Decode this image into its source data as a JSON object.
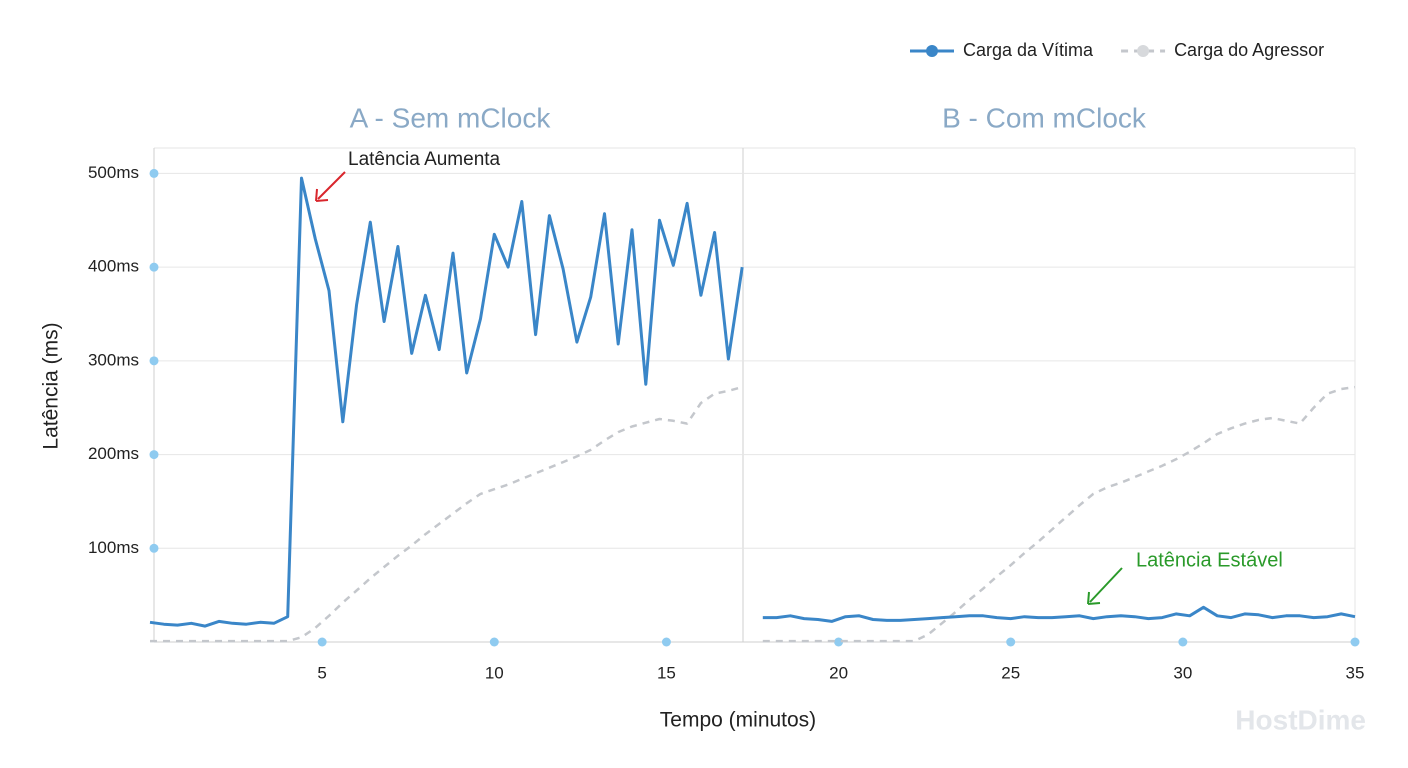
{
  "chart_data": {
    "type": "line",
    "panel_titles": [
      "A - Sem mClock",
      "B - Com mClock"
    ],
    "x_label": "Tempo (minutos)",
    "y_label": "Latência (ms)",
    "watermark": "HostDime",
    "legend_position": "top-right",
    "xlim": [
      0,
      35
    ],
    "xticks": [
      5,
      10,
      15,
      20,
      25,
      30,
      35
    ],
    "ylim": [
      0,
      525
    ],
    "yticks": [
      {
        "value": 100,
        "label": "100ms"
      },
      {
        "value": 200,
        "label": "200ms"
      },
      {
        "value": 300,
        "label": "300ms"
      },
      {
        "value": 400,
        "label": "400ms"
      },
      {
        "value": 500,
        "label": "500ms"
      }
    ],
    "grid": true,
    "x": [
      0,
      0.4,
      0.8,
      1.2,
      1.6,
      2.0,
      2.4,
      2.8,
      3.2,
      3.6,
      4.0,
      4.4,
      4.8,
      5.2,
      5.6,
      6.0,
      6.4,
      6.8,
      7.2,
      7.6,
      8.0,
      8.4,
      8.8,
      9.2,
      9.6,
      10.0,
      10.4,
      10.8,
      11.2,
      11.6,
      12.0,
      12.4,
      12.8,
      13.2,
      13.6,
      14.0,
      14.4,
      14.8,
      15.2,
      15.6,
      16.0,
      16.4,
      16.8,
      17.2,
      17.5,
      17.8,
      18.2,
      18.6,
      19.0,
      19.4,
      19.8,
      20.2,
      20.6,
      21.0,
      21.4,
      21.8,
      22.2,
      22.6,
      23.0,
      23.4,
      23.8,
      24.2,
      24.6,
      25.0,
      25.4,
      25.8,
      26.2,
      26.6,
      27.0,
      27.4,
      27.8,
      28.2,
      28.6,
      29.0,
      29.4,
      29.8,
      30.2,
      30.6,
      31.0,
      31.4,
      31.8,
      32.2,
      32.6,
      33.0,
      33.4,
      33.8,
      34.2,
      34.6,
      35.0
    ],
    "series": [
      {
        "name": "Carga da Vítima",
        "color": "#3a86c8",
        "dash": false,
        "values": [
          21,
          19,
          18,
          20,
          17,
          22,
          20,
          19,
          21,
          20,
          27,
          495,
          430,
          375,
          235,
          360,
          448,
          342,
          422,
          308,
          370,
          312,
          415,
          287,
          345,
          435,
          400,
          470,
          328,
          455,
          398,
          320,
          368,
          457,
          318,
          440,
          275,
          450,
          402,
          468,
          370,
          437,
          302,
          400,
          null,
          26,
          26,
          28,
          25,
          24,
          22,
          27,
          28,
          24,
          23,
          23,
          24,
          25,
          26,
          27,
          28,
          28,
          26,
          25,
          27,
          26,
          26,
          27,
          28,
          25,
          27,
          28,
          27,
          25,
          26,
          30,
          28,
          37,
          28,
          26,
          30,
          29,
          26,
          28,
          28,
          26,
          27,
          30,
          27
        ]
      },
      {
        "name": "Carga do Agressor",
        "color": "#c4c7cc",
        "dash": true,
        "values": [
          1,
          1,
          1,
          1,
          1,
          1,
          1,
          1,
          1,
          1,
          1,
          5,
          15,
          28,
          42,
          55,
          68,
          80,
          92,
          103,
          115,
          126,
          137,
          148,
          158,
          163,
          168,
          174,
          180,
          186,
          192,
          198,
          205,
          215,
          224,
          230,
          234,
          238,
          236,
          233,
          255,
          265,
          268,
          272,
          null,
          1,
          1,
          1,
          1,
          1,
          1,
          1,
          1,
          1,
          1,
          1,
          1,
          8,
          20,
          32,
          45,
          57,
          70,
          82,
          95,
          107,
          120,
          133,
          146,
          158,
          165,
          170,
          176,
          182,
          188,
          195,
          203,
          212,
          222,
          228,
          233,
          237,
          239,
          236,
          233,
          250,
          265,
          270,
          272
        ]
      }
    ],
    "annotations": [
      {
        "text": "Latência Aumenta",
        "color": "#d9262c"
      },
      {
        "text": "Latência Estável",
        "color": "#2a9a2a"
      }
    ]
  }
}
